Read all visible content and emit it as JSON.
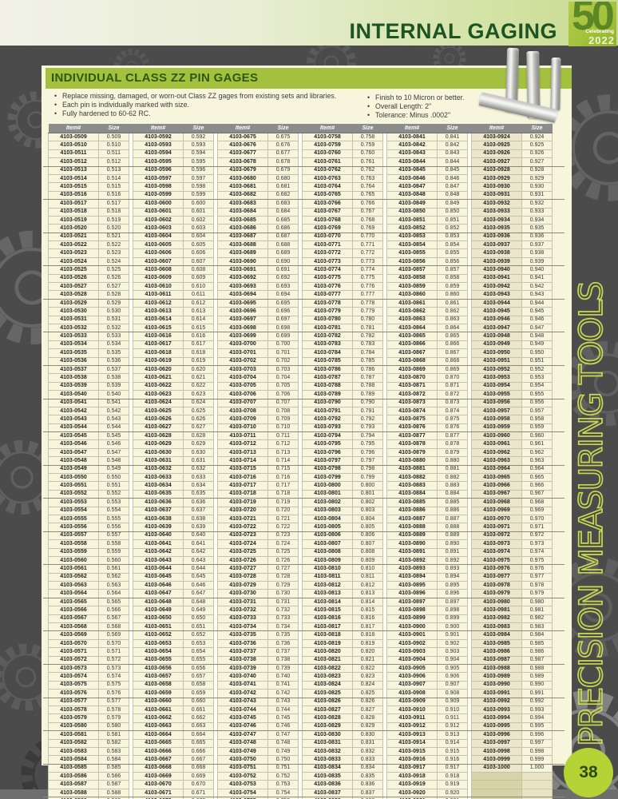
{
  "page": {
    "background_color": "#4b4b4b",
    "page_number": "38"
  },
  "top_banner": {
    "title": "INTERNAL GAGING",
    "title_color": "#1c5423",
    "band_colors": [
      "#f1f1e9",
      "#c6db90"
    ],
    "anniversary_logo": {
      "celebrating_label": "Celebrating",
      "big_number": "50",
      "year": "2022",
      "bg_color": "#a4c23c"
    }
  },
  "section": {
    "title": "INDIVIDUAL CLASS ZZ PIN GAGES",
    "bar_color": "#a3c13f",
    "title_color": "#2d5a12"
  },
  "bullets_left": [
    "Replace missing, damaged, or worn-out Class ZZ gages from existing sets and libraries.",
    "Each pin is individually marked with size.",
    "Fully hardened to 60-62 RC."
  ],
  "bullets_right": [
    "Finish to 10 Micron or better.",
    "Overall Length: 2\"",
    "Tolerance: Minus .0002\""
  ],
  "product_image_label": "steel pin gages",
  "sidebar": {
    "vertical_text": "PRECISION MEASURING TOOLS",
    "text_color": "#c9da50"
  },
  "table": {
    "column_headers": [
      "Item#",
      "Size"
    ],
    "pair_count": 6,
    "rows_per_column": 83,
    "item_prefix": "4103-",
    "first_item_suffix": 509,
    "last_item_suffix": 1000,
    "size_rule": "size equals item suffix divided by 1000, shown to 3 decimals",
    "group_rule_every_rows": 4,
    "first_entry": {
      "item": "4103-0509",
      "size": "0.509"
    },
    "last_entry": {
      "item": "4103-1000",
      "size": "1.000"
    },
    "column_first_items": [
      "4103-0509",
      "4103-0592",
      "4103-0675",
      "4103-0758",
      "4103-0841",
      "4103-0924"
    ],
    "column_last_items": [
      "4103-0591",
      "4103-0674",
      "4103-0757",
      "4103-0840",
      "4103-0923",
      "4103-1000"
    ],
    "colors": {
      "header_bg": "#8c8c8c",
      "header_text": "#ffffff",
      "body_bg": "#f8f5dd",
      "empty_cell_bg": "#d8d2a8"
    }
  }
}
